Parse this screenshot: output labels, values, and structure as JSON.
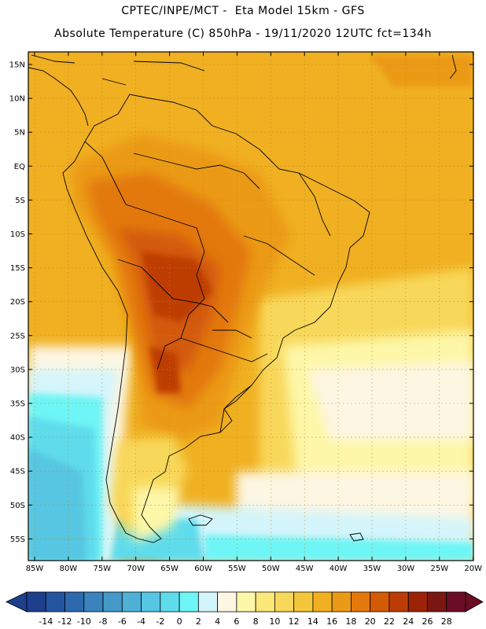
{
  "header": {
    "line1": "CPTEC/INPE/MCT -  Eta Model 15km - GFS",
    "line2": "Absolute Temperature (C) 850hPa - 19/11/2020 12UTC fct=134h"
  },
  "map": {
    "lat_labels": [
      "15N",
      "10N",
      "5N",
      "EQ",
      "5S",
      "10S",
      "15S",
      "20S",
      "25S",
      "30S",
      "35S",
      "40S",
      "45S",
      "50S",
      "55S"
    ],
    "lon_labels": [
      "85W",
      "80W",
      "75W",
      "70W",
      "65W",
      "60W",
      "55W",
      "50W",
      "45W",
      "40W",
      "35W",
      "30W",
      "25W",
      "20W"
    ]
  },
  "colorbar": {
    "labels": [
      "-14",
      "-12",
      "-10",
      "-8",
      "-6",
      "-4",
      "-2",
      "0",
      "2",
      "4",
      "6",
      "8",
      "10",
      "12",
      "14",
      "16",
      "18",
      "20",
      "22",
      "24",
      "26",
      "28"
    ],
    "colors": [
      "#1d3f8c",
      "#25549f",
      "#2d6aad",
      "#3a83bd",
      "#4499c8",
      "#4fb0d6",
      "#57c6e2",
      "#5edcec",
      "#6ef5f5",
      "#d3f5fb",
      "#fdf6e3",
      "#fdf7a8",
      "#fbe77a",
      "#f8d85a",
      "#f4c63b",
      "#f0b021",
      "#eb9a16",
      "#e3780d",
      "#d35a07",
      "#bd3c05",
      "#9c2307",
      "#7a1712",
      "#6b0e25"
    ]
  }
}
